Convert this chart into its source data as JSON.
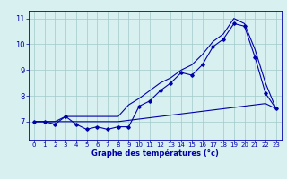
{
  "hours": [
    0,
    1,
    2,
    3,
    4,
    5,
    6,
    7,
    8,
    9,
    10,
    11,
    12,
    13,
    14,
    15,
    16,
    17,
    18,
    19,
    20,
    21,
    22,
    23
  ],
  "temp_actual": [
    7.0,
    7.0,
    6.9,
    7.2,
    6.9,
    6.7,
    6.8,
    6.7,
    6.8,
    6.8,
    7.6,
    7.8,
    8.2,
    8.5,
    8.9,
    8.8,
    9.2,
    9.9,
    10.2,
    10.8,
    10.7,
    9.5,
    8.1,
    7.5
  ],
  "temp_min_line": [
    7.0,
    7.0,
    7.0,
    7.0,
    7.0,
    7.0,
    7.0,
    7.0,
    7.0,
    7.05,
    7.1,
    7.15,
    7.2,
    7.25,
    7.3,
    7.35,
    7.4,
    7.45,
    7.5,
    7.55,
    7.6,
    7.65,
    7.7,
    7.5
  ],
  "temp_max_line": [
    7.0,
    7.0,
    7.0,
    7.2,
    7.2,
    7.2,
    7.2,
    7.2,
    7.2,
    7.65,
    7.9,
    8.2,
    8.5,
    8.7,
    9.0,
    9.2,
    9.6,
    10.1,
    10.4,
    11.0,
    10.8,
    9.8,
    8.5,
    7.5
  ],
  "line_color": "#0000aa",
  "bg_color": "#d8f0f0",
  "grid_color": "#a0c8c8",
  "axis_color": "#0000aa",
  "xlabel": "Graphe des températures (°c)",
  "ylim": [
    6.3,
    11.3
  ],
  "xlim": [
    -0.5,
    23.5
  ]
}
